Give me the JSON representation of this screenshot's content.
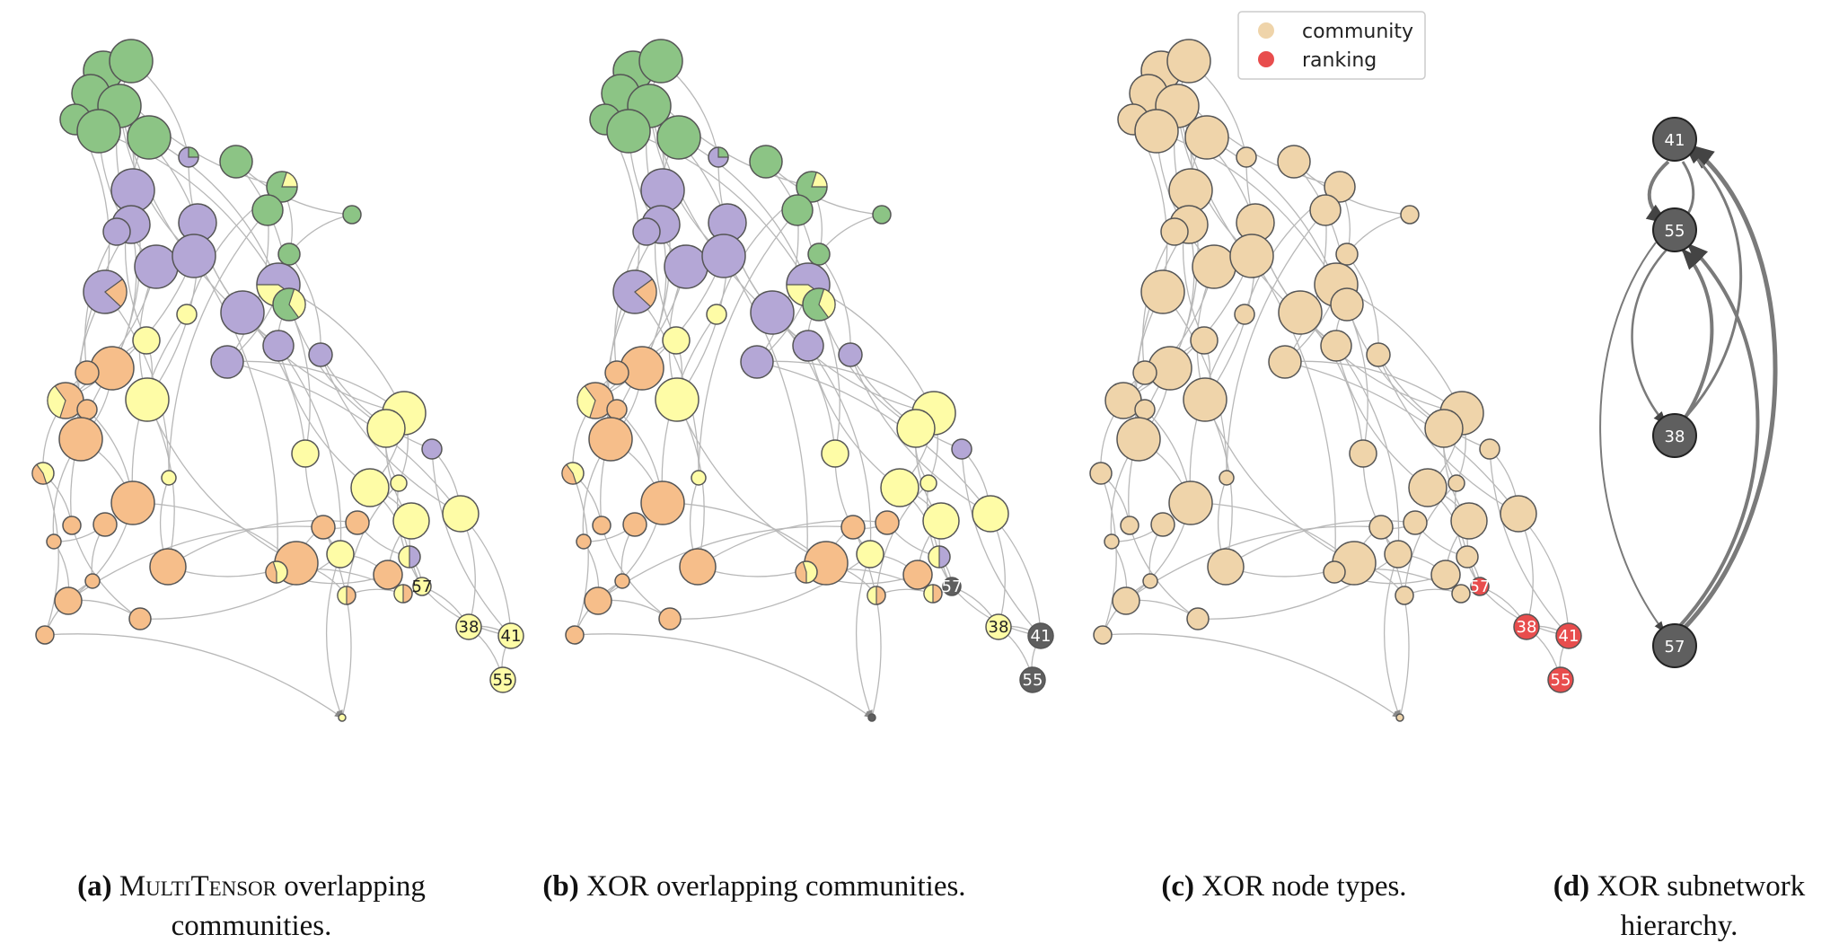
{
  "colors": {
    "green": "#8cc485",
    "purple": "#b4a7d6",
    "orange": "#f6be8a",
    "yellow": "#fefca6",
    "gray": "#5f5f5f",
    "tan": "#efd4aa",
    "red": "#e84d4d",
    "edge": "#b8b8b8",
    "node_border": "#555555"
  },
  "legend": {
    "items": [
      {
        "label": "community",
        "color": "#efd4aa"
      },
      {
        "label": "ranking",
        "color": "#e84d4d"
      }
    ]
  },
  "node_labels": {
    "n57": "57",
    "n38": "38",
    "n41": "41",
    "n55": "55"
  },
  "hierarchy": {
    "n41": "41",
    "n55": "55",
    "n38": "38",
    "n57": "57"
  },
  "captions": {
    "a": {
      "tag": "(a)",
      "method": "MultiTensor",
      "text": "overlapping",
      "line2": "communities."
    },
    "b": {
      "tag": "(b)",
      "method": "XOR",
      "text": "overlapping communities."
    },
    "c": {
      "tag": "(c)",
      "method": "XOR",
      "text": "node types."
    },
    "d": {
      "tag": "(d)",
      "method": "XOR",
      "text": "subnetwork",
      "line2": "hierarchy."
    }
  }
}
